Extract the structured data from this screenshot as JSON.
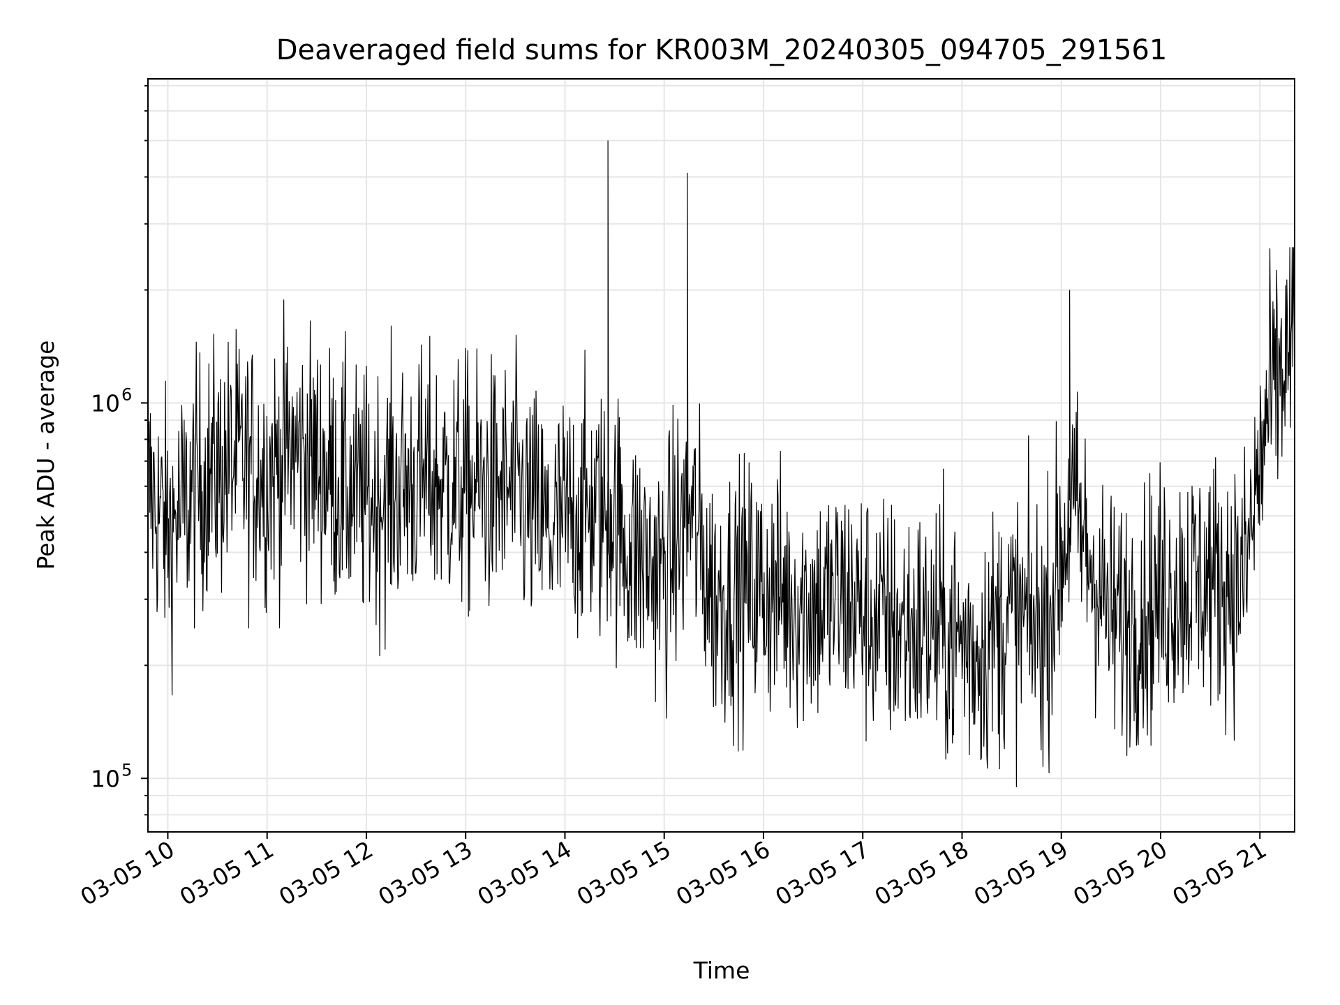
{
  "chart_data": {
    "type": "line",
    "title": "Deaveraged field sums for KR003M_20240305_094705_291561",
    "xlabel": "Time",
    "ylabel": "Peak ADU - average",
    "yscale": "log",
    "ylim": [
      72000,
      7300000
    ],
    "xlim": [
      "2024-03-05 09:48",
      "2024-03-05 21:21"
    ],
    "x_tick_labels": [
      "03-05 10",
      "03-05 11",
      "03-05 12",
      "03-05 13",
      "03-05 14",
      "03-05 15",
      "03-05 16",
      "03-05 17",
      "03-05 18",
      "03-05 19",
      "03-05 20",
      "03-05 21"
    ],
    "y_tick_labels": [
      {
        "value": 100000,
        "base": "10",
        "exp": "5"
      },
      {
        "value": 1000000,
        "base": "10",
        "exp": "6"
      }
    ],
    "grid": true,
    "legend": "none",
    "line_color": "#000000",
    "series": [
      {
        "x": [
          "2024-03-05 09:48",
          "2024-03-05 10:00",
          "2024-03-05 10:20",
          "2024-03-05 10:40",
          "2024-03-05 11:00",
          "2024-03-05 11:15",
          "2024-03-05 11:30",
          "2024-03-05 11:45",
          "2024-03-05 12:00",
          "2024-03-05 12:30",
          "2024-03-05 13:00",
          "2024-03-05 13:30",
          "2024-03-05 13:50",
          "2024-03-05 14:10",
          "2024-03-05 14:26",
          "2024-03-05 14:40",
          "2024-03-05 15:00",
          "2024-03-05 15:14",
          "2024-03-05 15:30",
          "2024-03-05 15:50",
          "2024-03-05 16:10",
          "2024-03-05 16:30",
          "2024-03-05 16:50",
          "2024-03-05 17:10",
          "2024-03-05 17:30",
          "2024-03-05 17:50",
          "2024-03-05 18:10",
          "2024-03-05 18:30",
          "2024-03-05 18:50",
          "2024-03-05 19:05",
          "2024-03-05 19:30",
          "2024-03-05 19:50",
          "2024-03-05 20:10",
          "2024-03-05 20:30",
          "2024-03-05 20:50",
          "2024-03-05 21:05",
          "2024-03-05 21:21"
        ],
        "y": [
          600000,
          450000,
          620000,
          700000,
          650000,
          750000,
          700000,
          600000,
          550000,
          620000,
          600000,
          580000,
          450000,
          520000,
          5000000,
          400000,
          350000,
          4100000,
          300000,
          320000,
          310000,
          290000,
          300000,
          260000,
          250000,
          240000,
          220000,
          270000,
          250000,
          2000000,
          260000,
          280000,
          330000,
          340000,
          330000,
          950000,
          1500000
        ]
      }
    ]
  }
}
